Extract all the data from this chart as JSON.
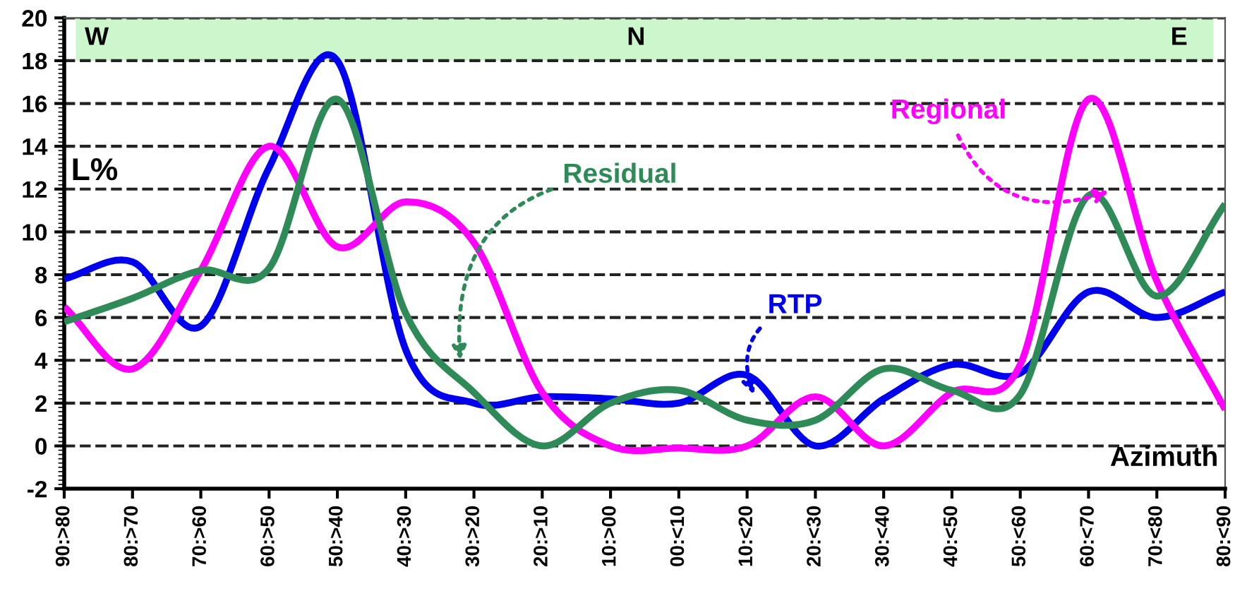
{
  "chart_data": {
    "type": "line",
    "xlabel": "Azimuth",
    "ylabel": "L%",
    "categories": [
      "90:>80",
      "80:>70",
      "70:>60",
      "60:>50",
      "50:>40",
      "40:>30",
      "30:>20",
      "20:>10",
      "10:>00",
      "00:<10",
      "10:<20",
      "20:<30",
      "30:<40",
      "40:<50",
      "50:<60",
      "60:<70",
      "70:<80",
      "80:<90"
    ],
    "series": [
      {
        "name": "RTP",
        "color": "#0000ee",
        "values": [
          7.8,
          8.6,
          5.6,
          13,
          18,
          4.5,
          2.0,
          2.3,
          2.2,
          2.0,
          3.3,
          0.0,
          2.2,
          3.8,
          3.4,
          7.2,
          6.0,
          7.2
        ]
      },
      {
        "name": "Regional",
        "color": "#ff00ff",
        "values": [
          6.5,
          3.6,
          8.2,
          14.0,
          9.3,
          11.4,
          9.5,
          2.5,
          0.0,
          -0.1,
          0.0,
          2.3,
          0.0,
          2.5,
          3.8,
          16.2,
          7.7,
          1.7
        ]
      },
      {
        "name": "Residual",
        "color": "#2e8b57",
        "values": [
          5.8,
          6.9,
          8.2,
          8.3,
          16.2,
          6.2,
          2.5,
          0.0,
          2.0,
          2.6,
          1.2,
          1.2,
          3.6,
          2.6,
          2.4,
          11.7,
          7.0,
          11.3
        ]
      }
    ],
    "ylim": [
      -2,
      20
    ],
    "yticks": [
      -2,
      0,
      2,
      4,
      6,
      8,
      10,
      12,
      14,
      16,
      18,
      20
    ],
    "bands": [
      {
        "axis": "y",
        "from": 18,
        "to": 20,
        "color": "#ccf7cc"
      }
    ],
    "annotations": [
      "W",
      "N",
      "E"
    ],
    "grid": "y",
    "legend": false,
    "line_style": "solid",
    "marker": "none"
  }
}
